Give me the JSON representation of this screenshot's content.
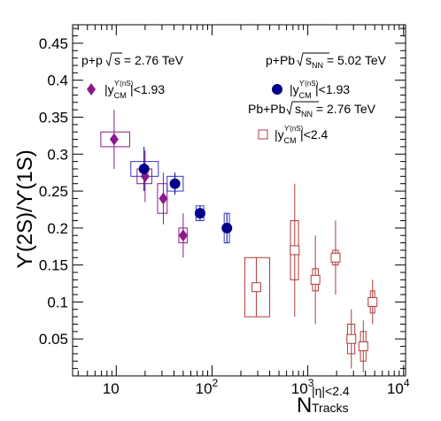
{
  "chart_data": {
    "type": "scatter",
    "title": "",
    "xlabel": {
      "main": "N",
      "super": "|η|<2.4",
      "sub": "Tracks"
    },
    "ylabel": "ϒ(2S)/ϒ(1S)",
    "x_scale": "log",
    "xlim": [
      3.5,
      10500
    ],
    "ylim": [
      0,
      0.475
    ],
    "x_ticks": [
      {
        "base": "10",
        "exp": ""
      },
      {
        "base": "10",
        "exp": "2"
      },
      {
        "base": "10",
        "exp": "3"
      },
      {
        "base": "10",
        "exp": "4"
      }
    ],
    "y_ticks": [
      "0.05",
      "0.1",
      "0.15",
      "0.2",
      "0.25",
      "0.3",
      "0.35",
      "0.4",
      "0.45"
    ],
    "grid": false,
    "series": [
      {
        "name": "p+p √s = 2.76 TeV",
        "legend_name": "p+p",
        "legend_sqrt": "s",
        "legend_energy": "= 2.76 TeV",
        "legend_cut": "|y_CM^ϒ(nS)|<1.93",
        "marker": "diamond",
        "color": "#8b1a8b",
        "points": [
          {
            "x": 9.5,
            "y": 0.32,
            "stat": 0.04,
            "sx_lo": 6.9,
            "sx_hi": 13.8,
            "sys": 0.01
          },
          {
            "x": 20,
            "y": 0.27,
            "stat": 0.035,
            "sx_lo": 16.5,
            "sx_hi": 23.5,
            "sys": 0.01
          },
          {
            "x": 31,
            "y": 0.24,
            "stat": 0.035,
            "sx_lo": 27,
            "sx_hi": 34,
            "sys": 0.02
          },
          {
            "x": 50,
            "y": 0.19,
            "stat": 0.03,
            "sx_lo": 45,
            "sx_hi": 55,
            "sys": 0.01
          }
        ]
      },
      {
        "name": "p+Pb √sNN = 5.02 TeV",
        "legend_name": "p+Pb",
        "legend_sqrt": "s",
        "legend_sqrt_sub": "NN",
        "legend_energy": "= 5.02 TeV",
        "legend_cut": "|y_CM^ϒ(nS)|<1.93",
        "marker": "circle",
        "color": "#00008b",
        "box_color": "#3333cc",
        "points": [
          {
            "x": 19.5,
            "y": 0.28,
            "stat": 0.03,
            "sx_lo": 14.2,
            "sx_hi": 27.5,
            "sys": 0.01
          },
          {
            "x": 41,
            "y": 0.26,
            "stat": 0.015,
            "sx_lo": 34,
            "sx_hi": 50,
            "sys": 0.01
          },
          {
            "x": 75,
            "y": 0.22,
            "stat": 0.01,
            "sx_lo": 68,
            "sx_hi": 82,
            "sys": 0.01
          },
          {
            "x": 143,
            "y": 0.2,
            "stat": 0.02,
            "sx_lo": 134,
            "sx_hi": 152,
            "sys": 0.02
          }
        ]
      },
      {
        "name": "Pb+Pb √sNN = 2.76 TeV",
        "legend_name": "Pb+Pb",
        "legend_sqrt": "s",
        "legend_sqrt_sub": "NN",
        "legend_energy": "= 2.76 TeV",
        "legend_cut": "|y_CM^ϒ(nS)|<2.4",
        "marker": "open-square",
        "color": "#b03a3a",
        "points": [
          {
            "x": 290,
            "y": 0.12,
            "stat": 0.04,
            "sx_lo": 220,
            "sx_hi": 400,
            "sys": 0.04
          },
          {
            "x": 730,
            "y": 0.17,
            "stat": 0.09,
            "sx_lo": 660,
            "sx_hi": 800,
            "sys": 0.04
          },
          {
            "x": 1200,
            "y": 0.13,
            "stat": 0.06,
            "sx_lo": 1120,
            "sx_hi": 1290,
            "sys": 0.015
          },
          {
            "x": 1950,
            "y": 0.16,
            "stat": 0.05,
            "sx_lo": 1820,
            "sx_hi": 2080,
            "sys": 0.01
          },
          {
            "x": 2850,
            "y": 0.05,
            "stat": 0.04,
            "sx_lo": 2600,
            "sx_hi": 3100,
            "sys": 0.02
          },
          {
            "x": 3800,
            "y": 0.04,
            "stat": 0.035,
            "sx_lo": 3550,
            "sx_hi": 4050,
            "sys": 0.02
          },
          {
            "x": 4750,
            "y": 0.1,
            "stat": 0.03,
            "sx_lo": 4500,
            "sx_hi": 5000,
            "sys": 0.015
          }
        ]
      }
    ],
    "legend_placement": "top"
  }
}
